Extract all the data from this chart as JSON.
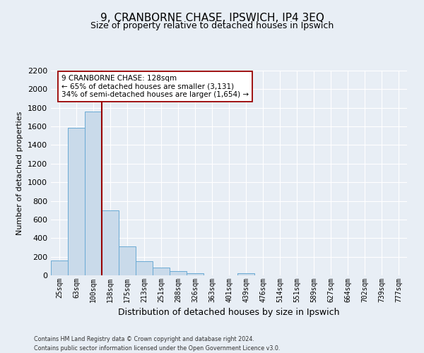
{
  "title": "9, CRANBORNE CHASE, IPSWICH, IP4 3EQ",
  "subtitle": "Size of property relative to detached houses in Ipswich",
  "xlabel": "Distribution of detached houses by size in Ipswich",
  "ylabel": "Number of detached properties",
  "bar_labels": [
    "25sqm",
    "63sqm",
    "100sqm",
    "138sqm",
    "175sqm",
    "213sqm",
    "251sqm",
    "288sqm",
    "326sqm",
    "363sqm",
    "401sqm",
    "439sqm",
    "476sqm",
    "514sqm",
    "551sqm",
    "589sqm",
    "627sqm",
    "664sqm",
    "702sqm",
    "739sqm",
    "777sqm"
  ],
  "bar_values": [
    160,
    1585,
    1760,
    700,
    310,
    155,
    85,
    45,
    25,
    0,
    0,
    20,
    0,
    0,
    0,
    0,
    0,
    0,
    0,
    0,
    0
  ],
  "bar_color": "#c9daea",
  "bar_edge_color": "#6aaad4",
  "property_line_index": 3,
  "property_line_color": "#990000",
  "ylim": [
    0,
    2200
  ],
  "yticks": [
    0,
    200,
    400,
    600,
    800,
    1000,
    1200,
    1400,
    1600,
    1800,
    2000,
    2200
  ],
  "annotation_text": "9 CRANBORNE CHASE: 128sqm\n← 65% of detached houses are smaller (3,131)\n34% of semi-detached houses are larger (1,654) →",
  "annotation_box_color": "#ffffff",
  "annotation_box_edge": "#990000",
  "footnote1": "Contains HM Land Registry data © Crown copyright and database right 2024.",
  "footnote2": "Contains public sector information licensed under the Open Government Licence v3.0.",
  "background_color": "#e8eef5",
  "plot_bg_color": "#e8eef5",
  "grid_color": "#ffffff",
  "title_fontsize": 11,
  "subtitle_fontsize": 9,
  "ylabel_fontsize": 8,
  "xlabel_fontsize": 9,
  "tick_fontsize": 7,
  "ytick_fontsize": 8
}
